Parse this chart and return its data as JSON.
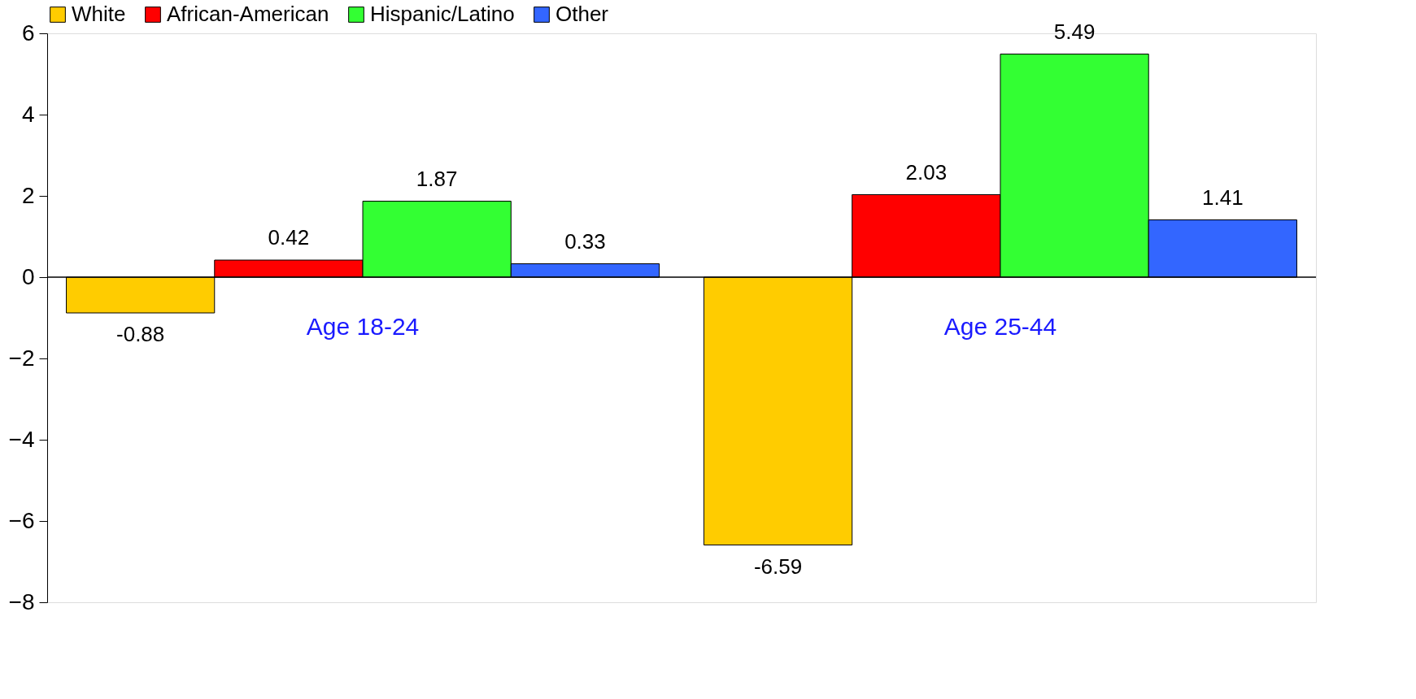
{
  "chart_data": {
    "type": "bar",
    "categories": [
      "Age 18-24",
      "Age 25-44"
    ],
    "series": [
      {
        "name": "White",
        "color": "#ffcc00",
        "values": [
          -0.88,
          -6.59
        ]
      },
      {
        "name": "African-American",
        "color": "#ff0000",
        "values": [
          0.42,
          2.03
        ]
      },
      {
        "name": "Hispanic/Latino",
        "color": "#33ff33",
        "values": [
          1.87,
          5.49
        ]
      },
      {
        "name": "Other",
        "color": "#3366ff",
        "values": [
          0.33,
          1.41
        ]
      }
    ],
    "ylim": [
      -8,
      6
    ],
    "yticks": [
      -8,
      -6,
      -4,
      -2,
      0,
      2,
      4,
      6
    ],
    "data_labels": true,
    "grid": false,
    "legend": "top"
  }
}
